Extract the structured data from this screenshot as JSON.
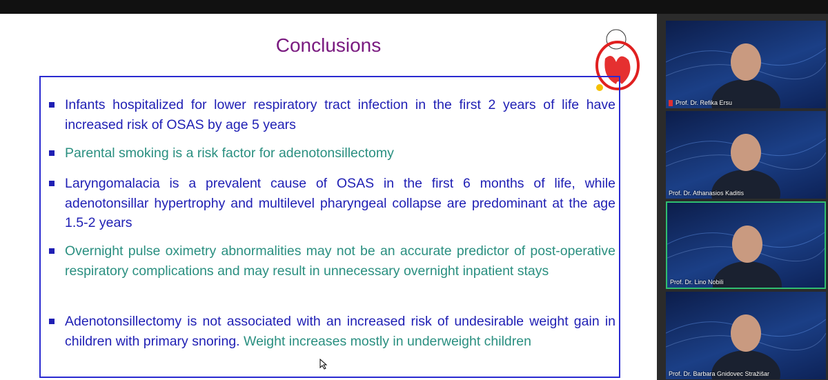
{
  "slide": {
    "title": "Conclusions",
    "title_color": "#7a1b80",
    "bullets": [
      {
        "segments": [
          {
            "text": "Infants hospitalized for lower respiratory tract infection in the first 2 years of life have increased risk of OSAS by age 5 years",
            "color": "#1f1fb4"
          }
        ]
      },
      {
        "segments": [
          {
            "text": "Parental smoking is a risk factor for adenotonsillectomy",
            "color": "#2a8f80"
          }
        ]
      },
      {
        "segments": [
          {
            "text": "Laryngomalacia is a prevalent cause of OSAS in the first 6 months of life, while adenotonsillar hypertrophy and multilevel pharyngeal collapse are predominant at the age 1.5-2 years",
            "color": "#1f1fb4"
          }
        ]
      },
      {
        "segments": [
          {
            "text": "Overnight pulse oximetry abnormalities may not be an accurate predictor of post-operative respiratory complications and may result in unnecessary overnight inpatient stays",
            "color": "#2a8f80"
          }
        ]
      },
      {
        "segments": [
          {
            "text": "Adenotonsillectomy is not associated with an increased risk of undesirable weight gain in children with primary snoring.",
            "color": "#1f1fb4"
          },
          {
            "text": " Weight increases mostly in underweight children",
            "color": "#2a8f80"
          }
        ]
      }
    ]
  },
  "participants": [
    {
      "name": "Prof. Dr. Refika Ersu",
      "muted": true,
      "active": false
    },
    {
      "name": "Prof. Dr. Athanasios Kaditis",
      "muted": false,
      "active": false
    },
    {
      "name": "Prof. Dr. Lino Nobili",
      "muted": false,
      "active": true
    },
    {
      "name": "Prof. Dr. Barbara Gnidovec Stražišar",
      "muted": false,
      "active": false
    }
  ]
}
